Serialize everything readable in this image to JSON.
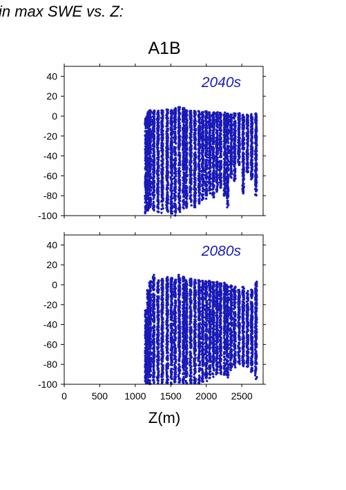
{
  "title": "in max SWE vs. Z:",
  "scenario": "A1B",
  "xlabel": "Z(m)",
  "colors": {
    "points": "#1a1ab8",
    "label": "#1a1ab8",
    "axis": "#000000"
  },
  "chart_data": [
    {
      "type": "scatter",
      "panel_label": "2040s",
      "xlim": [
        0,
        2800
      ],
      "ylim": [
        -100,
        50
      ],
      "x_ticks": [
        0,
        500,
        1000,
        1500,
        2000,
        2500
      ],
      "y_ticks": [
        40,
        20,
        0,
        -20,
        -40,
        -60,
        -80,
        -100
      ],
      "x_tick_labels_shown": false,
      "series": [
        {
          "bands": [
            {
              "x": 1150,
              "ymin": -98,
              "ymax": 0
            },
            {
              "x": 1180,
              "ymin": -95,
              "ymax": 5
            },
            {
              "x": 1210,
              "ymin": -92,
              "ymax": 7
            },
            {
              "x": 1260,
              "ymin": -95,
              "ymax": 6
            },
            {
              "x": 1320,
              "ymin": -97,
              "ymax": 7
            },
            {
              "x": 1380,
              "ymin": -98,
              "ymax": 6
            },
            {
              "x": 1450,
              "ymin": -96,
              "ymax": 7
            },
            {
              "x": 1510,
              "ymin": -98,
              "ymax": 7
            },
            {
              "x": 1560,
              "ymin": -100,
              "ymax": 8
            },
            {
              "x": 1620,
              "ymin": -97,
              "ymax": 9
            },
            {
              "x": 1680,
              "ymin": -94,
              "ymax": 8
            },
            {
              "x": 1720,
              "ymin": -92,
              "ymax": 7
            },
            {
              "x": 1780,
              "ymin": -90,
              "ymax": 6
            },
            {
              "x": 1840,
              "ymin": -93,
              "ymax": 6
            },
            {
              "x": 1900,
              "ymin": -88,
              "ymax": 5
            },
            {
              "x": 1950,
              "ymin": -85,
              "ymax": 5
            },
            {
              "x": 2000,
              "ymin": -83,
              "ymax": 5
            },
            {
              "x": 2050,
              "ymin": -78,
              "ymax": 4
            },
            {
              "x": 2100,
              "ymin": -82,
              "ymax": 4
            },
            {
              "x": 2150,
              "ymin": -76,
              "ymax": 4
            },
            {
              "x": 2200,
              "ymin": -72,
              "ymax": 4
            },
            {
              "x": 2260,
              "ymin": -80,
              "ymax": 4
            },
            {
              "x": 2300,
              "ymin": -92,
              "ymax": 3
            },
            {
              "x": 2350,
              "ymin": -62,
              "ymax": 2
            },
            {
              "x": 2400,
              "ymin": -66,
              "ymax": 3
            },
            {
              "x": 2460,
              "ymin": -50,
              "ymax": 3
            },
            {
              "x": 2520,
              "ymin": -78,
              "ymax": 2
            },
            {
              "x": 2580,
              "ymin": -58,
              "ymax": 2
            },
            {
              "x": 2640,
              "ymin": -64,
              "ymax": 2
            },
            {
              "x": 2700,
              "ymin": -80,
              "ymax": 3
            }
          ]
        }
      ]
    },
    {
      "type": "scatter",
      "panel_label": "2080s",
      "xlim": [
        0,
        2800
      ],
      "ylim": [
        -100,
        50
      ],
      "x_ticks": [
        0,
        500,
        1000,
        1500,
        2000,
        2500
      ],
      "y_ticks": [
        40,
        20,
        0,
        -20,
        -40,
        -60,
        -80,
        -100
      ],
      "x_tick_labels_shown": true,
      "series": [
        {
          "bands": [
            {
              "x": 1150,
              "ymin": -100,
              "ymax": -25
            },
            {
              "x": 1180,
              "ymin": -100,
              "ymax": -5
            },
            {
              "x": 1210,
              "ymin": -100,
              "ymax": 4
            },
            {
              "x": 1260,
              "ymin": -100,
              "ymax": 10
            },
            {
              "x": 1320,
              "ymin": -100,
              "ymax": 5
            },
            {
              "x": 1380,
              "ymin": -100,
              "ymax": 6
            },
            {
              "x": 1450,
              "ymin": -100,
              "ymax": 8
            },
            {
              "x": 1510,
              "ymin": -100,
              "ymax": 7
            },
            {
              "x": 1560,
              "ymin": -100,
              "ymax": 5
            },
            {
              "x": 1620,
              "ymin": -100,
              "ymax": 10
            },
            {
              "x": 1680,
              "ymin": -100,
              "ymax": 8
            },
            {
              "x": 1720,
              "ymin": -100,
              "ymax": 6
            },
            {
              "x": 1780,
              "ymin": -100,
              "ymax": 6
            },
            {
              "x": 1840,
              "ymin": -100,
              "ymax": 5
            },
            {
              "x": 1900,
              "ymin": -100,
              "ymax": 5
            },
            {
              "x": 1950,
              "ymin": -98,
              "ymax": 4
            },
            {
              "x": 2000,
              "ymin": -98,
              "ymax": 4
            },
            {
              "x": 2050,
              "ymin": -96,
              "ymax": 4
            },
            {
              "x": 2100,
              "ymin": -95,
              "ymax": 3
            },
            {
              "x": 2150,
              "ymin": -93,
              "ymax": 3
            },
            {
              "x": 2200,
              "ymin": -90,
              "ymax": 2
            },
            {
              "x": 2260,
              "ymin": -92,
              "ymax": 2
            },
            {
              "x": 2300,
              "ymin": -95,
              "ymax": 0
            },
            {
              "x": 2350,
              "ymin": -88,
              "ymax": 0
            },
            {
              "x": 2400,
              "ymin": -88,
              "ymax": -2
            },
            {
              "x": 2460,
              "ymin": -80,
              "ymax": -5
            },
            {
              "x": 2520,
              "ymin": -82,
              "ymax": -2
            },
            {
              "x": 2580,
              "ymin": -85,
              "ymax": -5
            },
            {
              "x": 2640,
              "ymin": -88,
              "ymax": -5
            },
            {
              "x": 2700,
              "ymin": -95,
              "ymax": 3
            }
          ]
        }
      ]
    }
  ]
}
